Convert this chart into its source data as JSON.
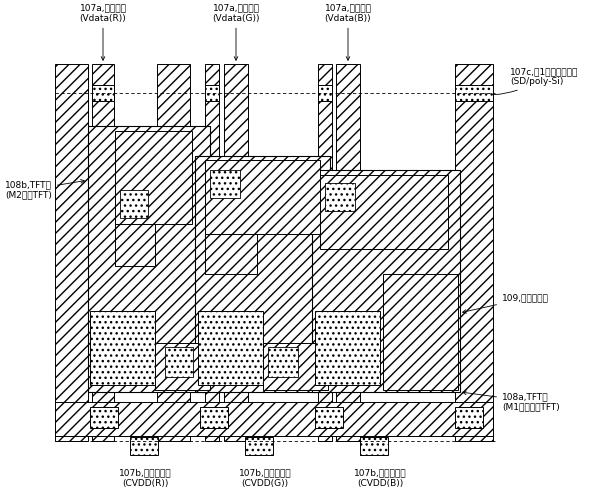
{
  "bg_color": "#ffffff",
  "labels": {
    "top_left": "107a,データ線\n(Vdata(R))",
    "top_center_left": "107a,データ線\n(Vdata(G))",
    "top_center_right": "107a,データ線\n(Vdata(B))",
    "right_top": "107c,第1コンタクト部\n(SD/poly-Si)",
    "left_tft": "108b,TFT部\n(M2駆動TFT)",
    "right_cap": "109,保持容量部",
    "right_tft": "108a,TFT部\n(M1スイッチTFT)",
    "bot_left": "107b,電力供給線\n(CVDD(R))",
    "bot_center": "107b,電力供給線\n(CVDD(G))",
    "bot_right": "107b,電力供給線\n(CVDD(B))"
  },
  "fig_width": 6.14,
  "fig_height": 5.04
}
